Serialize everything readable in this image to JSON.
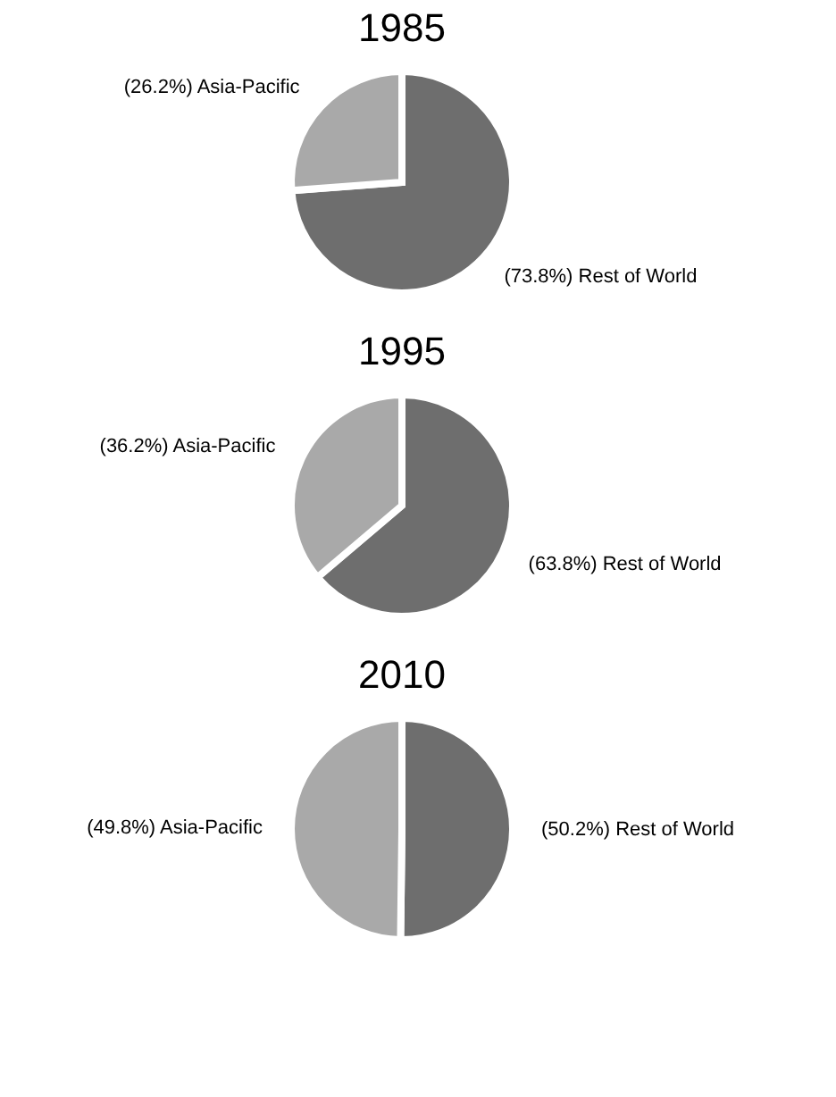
{
  "chart_data": [
    {
      "type": "pie",
      "title": "1985",
      "categories": [
        "(73.8%) Rest of  World",
        "(26.2%) Asia-Pacific"
      ],
      "values": [
        73.8,
        26.2
      ],
      "colors": [
        "#6e6e6e",
        "#a9a9a9"
      ]
    },
    {
      "type": "pie",
      "title": "1995",
      "categories": [
        "(63.8%) Rest of World",
        "(36.2%) Asia-Pacific"
      ],
      "values": [
        63.8,
        36.2
      ],
      "colors": [
        "#6e6e6e",
        "#a9a9a9"
      ]
    },
    {
      "type": "pie",
      "title": "2010",
      "categories": [
        "(50.2%) Rest of World",
        "(49.8%) Asia-Pacific"
      ],
      "values": [
        50.2,
        49.8
      ],
      "colors": [
        "#6e6e6e",
        "#a9a9a9"
      ]
    }
  ]
}
